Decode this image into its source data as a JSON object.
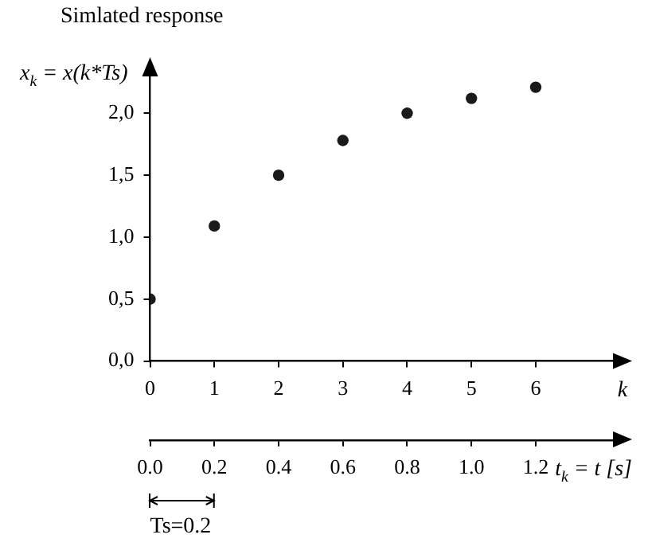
{
  "chart_data": {
    "type": "scatter",
    "title": "Simlated response",
    "ylabel": "x$_{k}$ = x(k*Ts)",
    "xlabel": "k",
    "x2label": "t$_{k}$ = t [s]",
    "x": [
      0,
      1,
      2,
      3,
      4,
      5,
      6
    ],
    "series": [
      {
        "color": "#1a1a1a",
        "values": [
          0.5,
          1.09,
          1.5,
          1.78,
          2.0,
          2.12,
          2.21
        ]
      }
    ],
    "xlim": [
      0,
      7.4
    ],
    "xticks": [
      0,
      1,
      2,
      3,
      4,
      5,
      6
    ],
    "x2lim": [
      0,
      1.48
    ],
    "x2ticks": [
      {
        "value": 0,
        "label": "0.0"
      },
      {
        "value": 0.2,
        "label": "0.2"
      },
      {
        "value": 0.4,
        "label": "0.4"
      },
      {
        "value": 0.6,
        "label": "0.6"
      },
      {
        "value": 0.8,
        "label": "0.8"
      },
      {
        "value": 1.0,
        "label": "1.0"
      },
      {
        "value": 1.2,
        "label": "1.2"
      }
    ],
    "ylim": [
      0,
      2.4
    ],
    "yticks": [
      {
        "value": 0,
        "label": "0,0"
      },
      {
        "value": 0.5,
        "label": "0,5"
      },
      {
        "value": 1.0,
        "label": "1,0"
      },
      {
        "value": 1.5,
        "label": "1,5"
      },
      {
        "value": 2.0,
        "label": "2,0"
      }
    ],
    "grid": false,
    "legend": false,
    "marker": "circle",
    "annotations": [
      "Ts=0.2"
    ]
  }
}
